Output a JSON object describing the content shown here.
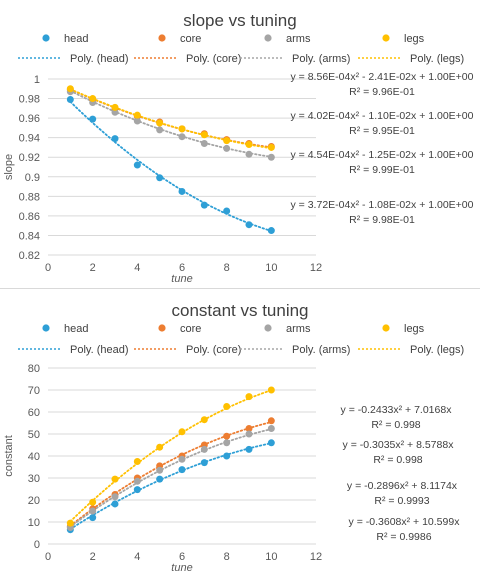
{
  "chart_data": [
    {
      "type": "scatter",
      "title": "slope vs tuning",
      "xlabel": "tune",
      "ylabel": "slope",
      "xlim": [
        0,
        12
      ],
      "ylim": [
        0.82,
        1
      ],
      "xticks": [
        "0",
        "2",
        "4",
        "6",
        "8",
        "10",
        "12"
      ],
      "yticks": [
        "0.82",
        "0.84",
        "0.86",
        "0.88",
        "0.9",
        "0.92",
        "0.94",
        "0.96",
        "0.98",
        "1"
      ],
      "grid": "horizontal",
      "legend_position": "top",
      "series": [
        {
          "name": "head",
          "color": "#2e9fd6",
          "x": [
            1,
            2,
            3,
            4,
            5,
            6,
            7,
            8,
            9,
            10
          ],
          "values": [
            0.979,
            0.959,
            0.939,
            0.912,
            0.899,
            0.885,
            0.871,
            0.865,
            0.851,
            0.845
          ]
        },
        {
          "name": "core",
          "color": "#ed7d31",
          "x": [
            1,
            2,
            3,
            4,
            5,
            6,
            7,
            8,
            9,
            10
          ],
          "values": [
            0.989,
            0.979,
            0.97,
            0.962,
            0.956,
            0.949,
            0.944,
            0.938,
            0.934,
            0.931
          ]
        },
        {
          "name": "arms",
          "color": "#a5a5a5",
          "x": [
            1,
            2,
            3,
            4,
            5,
            6,
            7,
            8,
            9,
            10
          ],
          "values": [
            0.987,
            0.976,
            0.966,
            0.957,
            0.948,
            0.941,
            0.934,
            0.929,
            0.923,
            0.92
          ]
        },
        {
          "name": "legs",
          "color": "#ffc000",
          "x": [
            1,
            2,
            3,
            4,
            5,
            6,
            7,
            8,
            9,
            10
          ],
          "values": [
            0.99,
            0.98,
            0.971,
            0.963,
            0.955,
            0.949,
            0.943,
            0.937,
            0.933,
            0.93
          ]
        }
      ],
      "trendlines": [
        {
          "name": "Poly. (head)",
          "color": "#2e9fd6",
          "a": 0.000856,
          "b": -0.0241,
          "c": 1.0
        },
        {
          "name": "Poly. (core)",
          "color": "#ed7d31",
          "a": 0.000402,
          "b": -0.011,
          "c": 1.0
        },
        {
          "name": "Poly. (arms)",
          "color": "#a5a5a5",
          "a": 0.000454,
          "b": -0.0125,
          "c": 1.0
        },
        {
          "name": "Poly. (legs)",
          "color": "#ffc000",
          "a": 0.000372,
          "b": -0.0108,
          "c": 1.0
        }
      ],
      "equations": [
        {
          "eq": "y = 8.56E-04x² - 2.41E-02x + 1.00E+00",
          "r2": "R² = 9.96E-01"
        },
        {
          "eq": "y = 4.02E-04x² - 1.10E-02x + 1.00E+00",
          "r2": "R² = 9.95E-01"
        },
        {
          "eq": "y = 4.54E-04x² - 1.25E-02x + 1.00E+00",
          "r2": "R² = 9.99E-01"
        },
        {
          "eq": "y = 3.72E-04x² - 1.08E-02x + 1.00E+00",
          "r2": "R² = 9.98E-01"
        }
      ]
    },
    {
      "type": "scatter",
      "title": "constant vs tuning",
      "xlabel": "tune",
      "ylabel": "constant",
      "xlim": [
        0,
        12
      ],
      "ylim": [
        0,
        80
      ],
      "xticks": [
        "0",
        "2",
        "4",
        "6",
        "8",
        "10",
        "12"
      ],
      "yticks": [
        "0",
        "10",
        "20",
        "30",
        "40",
        "50",
        "60",
        "70",
        "80"
      ],
      "grid": "horizontal",
      "legend_position": "top",
      "series": [
        {
          "name": "head",
          "color": "#2e9fd6",
          "x": [
            1,
            2,
            3,
            4,
            5,
            6,
            7,
            8,
            9,
            10
          ],
          "values": [
            6.5,
            12.0,
            18.2,
            24.7,
            29.5,
            33.8,
            37.0,
            40.0,
            43.0,
            46.0
          ]
        },
        {
          "name": "core",
          "color": "#ed7d31",
          "x": [
            1,
            2,
            3,
            4,
            5,
            6,
            7,
            8,
            9,
            10
          ],
          "values": [
            8.0,
            16.0,
            22.5,
            30.0,
            35.5,
            40.0,
            45.0,
            49.0,
            52.5,
            56.0
          ]
        },
        {
          "name": "arms",
          "color": "#a5a5a5",
          "x": [
            1,
            2,
            3,
            4,
            5,
            6,
            7,
            8,
            9,
            10
          ],
          "values": [
            7.5,
            15.0,
            21.5,
            28.5,
            33.5,
            38.5,
            43.0,
            46.0,
            50.0,
            52.5
          ]
        },
        {
          "name": "legs",
          "color": "#ffc000",
          "x": [
            1,
            2,
            3,
            4,
            5,
            6,
            7,
            8,
            9,
            10
          ],
          "values": [
            9.5,
            19.0,
            29.5,
            37.5,
            44.0,
            51.0,
            56.5,
            62.5,
            67.0,
            70.0
          ]
        }
      ],
      "trendlines": [
        {
          "name": "Poly. (head)",
          "color": "#2e9fd6",
          "a": -0.2433,
          "b": 7.0168,
          "c": 0
        },
        {
          "name": "Poly. (core)",
          "color": "#ed7d31",
          "a": -0.3035,
          "b": 8.5788,
          "c": 0
        },
        {
          "name": "Poly. (arms)",
          "color": "#a5a5a5",
          "a": -0.2896,
          "b": 8.1174,
          "c": 0
        },
        {
          "name": "Poly. (legs)",
          "color": "#ffc000",
          "a": -0.3608,
          "b": 10.599,
          "c": 0
        }
      ],
      "equations": [
        {
          "eq": "y = -0.2433x² + 7.0168x",
          "r2": "R² = 0.998"
        },
        {
          "eq": "y = -0.3035x² + 8.5788x",
          "r2": "R² = 0.998"
        },
        {
          "eq": "y = -0.2896x² + 8.1174x",
          "r2": "R² = 0.9993"
        },
        {
          "eq": "y = -0.3608x² + 10.599x",
          "r2": "R² = 0.9986"
        }
      ]
    }
  ]
}
